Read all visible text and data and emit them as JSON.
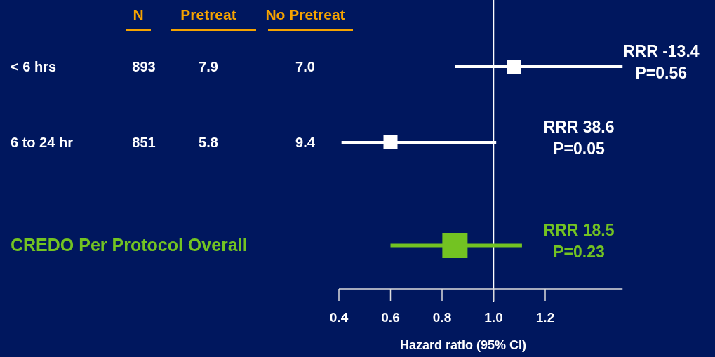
{
  "chart_data": {
    "type": "scatter",
    "orientation": "horizontal",
    "marker": "square",
    "xlabel": "Hazard ratio (95% CI)",
    "categories": [
      "< 6 hrs",
      "6 to 24 hr",
      "CREDO Per Protocol Overall"
    ],
    "series": [
      {
        "color": "#ffffff",
        "values": [
          1.08,
          0.6,
          null
        ],
        "errors": [
          [
            0.85,
            1.5
          ],
          [
            0.41,
            1.01
          ],
          null
        ]
      },
      {
        "color": "#73c322",
        "values": [
          null,
          null,
          0.85
        ],
        "errors": [
          null,
          null,
          [
            0.6,
            1.11
          ]
        ]
      }
    ],
    "xlim": [
      0.4,
      1.5
    ],
    "xticks": [
      {
        "value": 0.4,
        "label": "0.4"
      },
      {
        "value": 0.6,
        "label": "0.6"
      },
      {
        "value": 0.8,
        "label": "0.8"
      },
      {
        "value": 1,
        "label": "1.0"
      },
      {
        "value": 1.2,
        "label": "1.2"
      }
    ],
    "ref_lines": [
      {
        "axis": "x",
        "value": 1,
        "color": "#ffffff"
      }
    ],
    "annotations": [
      "N",
      "Pretreat",
      "No Pretreat",
      "893",
      "7.9",
      "7.0",
      "851",
      "5.8",
      "9.4",
      "RRR -13.4\nP=0.56",
      "RRR 38.6\nP=0.05",
      "RRR 18.5\nP=0.23"
    ]
  }
}
